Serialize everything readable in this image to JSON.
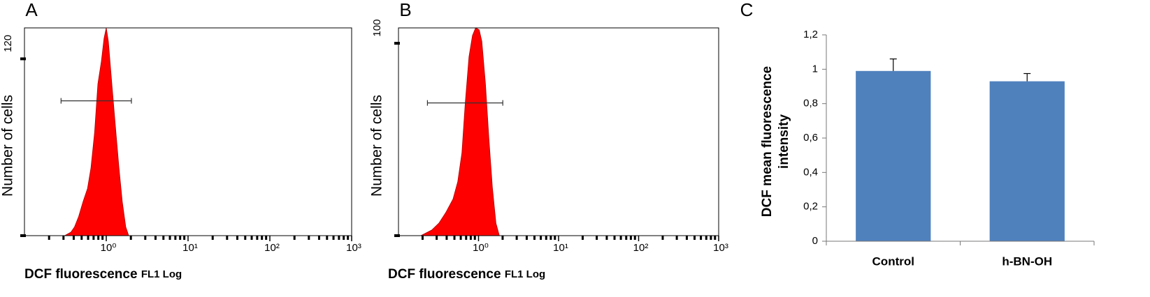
{
  "chart_data": [
    {
      "type": "histogram-area",
      "panel_label": "A",
      "ylabel": "Number of cells",
      "xlabel": "DCF fluorescence",
      "xlabel_unit": "FL1 Log",
      "color": "#ff0000",
      "log_x": true,
      "x": [
        0.31,
        0.37,
        0.41,
        0.46,
        0.52,
        0.59,
        0.65,
        0.72,
        0.79,
        0.87,
        0.94,
        1.0,
        1.06,
        1.17,
        1.29,
        1.43,
        1.57,
        1.73,
        1.88
      ],
      "values": [
        0,
        2.4,
        6,
        13,
        23,
        32,
        46,
        70,
        103,
        118,
        134,
        141,
        132,
        103,
        75,
        46,
        23,
        6,
        0
      ],
      "gate": {
        "x": [
          0.28,
          2.03
        ],
        "y": 91.5
      },
      "xlim": [
        0.1,
        1000
      ],
      "xticks": [
        {
          "value": 1,
          "label": "10⁰"
        },
        {
          "value": 10,
          "label": "10¹"
        },
        {
          "value": 100,
          "label": "10²"
        },
        {
          "value": 1000,
          "label": "10³"
        }
      ],
      "ylim": [
        0,
        141
      ],
      "yticks": [
        120
      ]
    },
    {
      "type": "histogram-area",
      "panel_label": "B",
      "ylabel": "Number of cells",
      "xlabel": "DCF fluorescence",
      "xlabel_unit": "FL1 Log",
      "color": "#ff0000",
      "log_x": true,
      "x": [
        0.19,
        0.26,
        0.32,
        0.39,
        0.48,
        0.55,
        0.62,
        0.68,
        0.76,
        0.84,
        0.92,
        1.02,
        1.1,
        1.22,
        1.35,
        1.49,
        1.65,
        1.82
      ],
      "values": [
        0,
        2.9,
        6.5,
        12,
        19,
        28,
        43,
        68,
        93,
        104,
        108,
        107,
        101,
        79,
        50,
        25,
        6.5,
        0
      ],
      "gate": {
        "x": [
          0.23,
          2.01
        ],
        "y": 69
      },
      "xlim": [
        0.1,
        1000
      ],
      "xticks": [
        {
          "value": 1,
          "label": "10⁰"
        },
        {
          "value": 10,
          "label": "10¹"
        },
        {
          "value": 100,
          "label": "10²"
        },
        {
          "value": 1000,
          "label": "10³"
        }
      ],
      "ylim": [
        0,
        108
      ],
      "yticks": [
        100
      ]
    },
    {
      "type": "bar",
      "panel_label": "C",
      "ylabel": [
        "DCF mean fluorescence",
        "intensity"
      ],
      "categories": [
        "Control",
        "h-BN-OH"
      ],
      "values": [
        0.99,
        0.93
      ],
      "errors": [
        0.07,
        0.045
      ],
      "color": "#4f81bd",
      "ylim": [
        0,
        1.2
      ],
      "yticks": [
        0,
        {
          "value": 0.2,
          "label": "0,2"
        },
        {
          "value": 0.4,
          "label": "0,4"
        },
        {
          "value": 0.6,
          "label": "0,6"
        },
        {
          "value": 0.8,
          "label": "0,8"
        },
        1,
        {
          "value": 1.2,
          "label": "1,2"
        }
      ]
    }
  ]
}
